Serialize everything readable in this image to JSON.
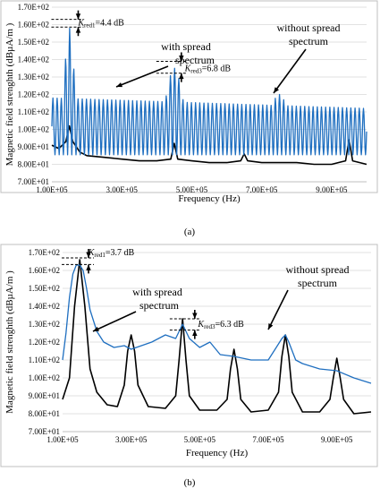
{
  "chart_data": [
    {
      "id": "a",
      "type": "line",
      "panel_label": "(a)",
      "xlabel": "Frequency (Hz)",
      "ylabel": "Magnetic field strenghth (dBµA/m )",
      "xlim": [
        100000,
        1000000
      ],
      "ylim": [
        70,
        170
      ],
      "grid": true,
      "yticks": [
        {
          "v": 70,
          "label": "7.00E+01"
        },
        {
          "v": 80,
          "label": "8.00E+01"
        },
        {
          "v": 90,
          "label": "9.00E+01"
        },
        {
          "v": 100,
          "label": "1.00E+02"
        },
        {
          "v": 110,
          "label": "1.10E+02"
        },
        {
          "v": 120,
          "label": "1.20E+02"
        },
        {
          "v": 130,
          "label": "1.30E+02"
        },
        {
          "v": 140,
          "label": "1.40E+02"
        },
        {
          "v": 150,
          "label": "1.50E+02"
        },
        {
          "v": 160,
          "label": "1.60E+02"
        },
        {
          "v": 170,
          "label": "1.70E+02"
        }
      ],
      "xticks": [
        {
          "v": 100000,
          "label": "1.00E+05"
        },
        {
          "v": 300000,
          "label": "3.00E+05"
        },
        {
          "v": 500000,
          "label": "5.00E+05"
        },
        {
          "v": 700000,
          "label": "7.00E+05"
        },
        {
          "v": 900000,
          "label": "9.00E+05"
        }
      ],
      "annotations": {
        "spread_label": [
          "with spread",
          "spectrum"
        ],
        "nospread_label": [
          "without spread",
          "spectrum"
        ],
        "kred1": {
          "k": "K",
          "sub": "red1",
          "val": "=4.4 dB"
        },
        "kred3": {
          "k": "K",
          "sub": "red3",
          "val": "=6.8 dB"
        }
      },
      "series": [
        {
          "name": "without spread spectrum",
          "color": "#000000",
          "x": [
            100000,
            120000,
            140000,
            150000,
            160000,
            180000,
            200000,
            250000,
            300000,
            350000,
            400000,
            440000,
            450000,
            460000,
            500000,
            550000,
            600000,
            640000,
            650000,
            660000,
            700000,
            750000,
            800000,
            850000,
            900000,
            940000,
            950000,
            960000,
            1000000
          ],
          "y": [
            91,
            89,
            93,
            102,
            93,
            87,
            85,
            84,
            83,
            82,
            82,
            83,
            92,
            83,
            82,
            81,
            81,
            82,
            86,
            82,
            81,
            81,
            81,
            80,
            80,
            82,
            94,
            82,
            80
          ]
        },
        {
          "name": "with spread spectrum",
          "color": "#1f6fc0",
          "x": [
            100000,
            1000000
          ],
          "y": [
            90,
            90
          ]
        }
      ]
    },
    {
      "id": "b",
      "type": "line",
      "panel_label": "(b)",
      "xlabel": "Frequency (Hz)",
      "ylabel": "Magnetic field strenghth (dBµA/m )",
      "xlim": [
        100000,
        1000000
      ],
      "ylim": [
        70,
        170
      ],
      "grid": true,
      "yticks": [
        {
          "v": 70,
          "label": "7.00E+01"
        },
        {
          "v": 80,
          "label": "8.00E+01"
        },
        {
          "v": 90,
          "label": "9.00E+01"
        },
        {
          "v": 100,
          "label": "1.00E+02"
        },
        {
          "v": 110,
          "label": "1.10E+02"
        },
        {
          "v": 120,
          "label": "1.20E+02"
        },
        {
          "v": 130,
          "label": "1.30E+02"
        },
        {
          "v": 140,
          "label": "1.40E+02"
        },
        {
          "v": 150,
          "label": "1.50E+02"
        },
        {
          "v": 160,
          "label": "1.60E+02"
        },
        {
          "v": 170,
          "label": "1.70E+02"
        }
      ],
      "xticks": [
        {
          "v": 100000,
          "label": "1.00E+05"
        },
        {
          "v": 300000,
          "label": "3.00E+05"
        },
        {
          "v": 500000,
          "label": "5.00E+05"
        },
        {
          "v": 700000,
          "label": "7.00E+05"
        },
        {
          "v": 900000,
          "label": "9.00E+05"
        }
      ],
      "annotations": {
        "spread_label": [
          "with spread",
          "spectrum"
        ],
        "nospread_label": [
          "without spread",
          "spectrum"
        ],
        "kred1": {
          "k": "K",
          "sub": "red1",
          "val": "=3.7 dB"
        },
        "kred3": {
          "k": "K",
          "sub": "red3",
          "val": "=6.3 dB"
        }
      },
      "series": [
        {
          "name": "without spread spectrum",
          "color": "#000000",
          "x": [
            100000,
            120000,
            135000,
            150000,
            165000,
            180000,
            200000,
            230000,
            260000,
            280000,
            290000,
            300000,
            310000,
            320000,
            350000,
            400000,
            430000,
            440000,
            450000,
            460000,
            470000,
            500000,
            550000,
            580000,
            590000,
            600000,
            610000,
            620000,
            650000,
            700000,
            730000,
            740000,
            750000,
            760000,
            770000,
            800000,
            850000,
            880000,
            890000,
            900000,
            910000,
            920000,
            950000,
            1000000
          ],
          "y": [
            88,
            100,
            140,
            166,
            140,
            105,
            92,
            85,
            84,
            96,
            115,
            124,
            115,
            96,
            84,
            83,
            90,
            110,
            133,
            110,
            90,
            82,
            82,
            88,
            105,
            116,
            105,
            88,
            81,
            82,
            92,
            112,
            124,
            112,
            92,
            81,
            81,
            88,
            100,
            111,
            100,
            88,
            80,
            81
          ]
        },
        {
          "name": "with spread spectrum",
          "color": "#1f6fc0",
          "x": [
            100000,
            110000,
            120000,
            130000,
            140000,
            150000,
            160000,
            170000,
            180000,
            200000,
            220000,
            250000,
            280000,
            300000,
            330000,
            360000,
            400000,
            430000,
            450000,
            470000,
            500000,
            530000,
            560000,
            600000,
            650000,
            700000,
            720000,
            740000,
            750000,
            760000,
            780000,
            800000,
            850000,
            900000,
            950000,
            1000000
          ],
          "y": [
            110,
            125,
            145,
            158,
            163,
            163,
            160,
            150,
            138,
            126,
            120,
            117,
            118,
            116,
            118,
            120,
            124,
            122,
            130,
            122,
            117,
            120,
            113,
            112,
            110,
            110,
            116,
            122,
            124,
            120,
            110,
            108,
            105,
            104,
            100,
            97
          ]
        }
      ]
    }
  ]
}
